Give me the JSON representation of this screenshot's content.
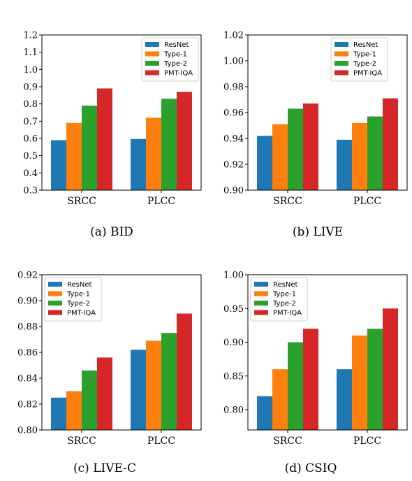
{
  "colors": {
    "ResNet": "#1f77b4",
    "Type-1": "#ff7f0e",
    "Type-2": "#2ca02c",
    "PMT-IQA": "#d62728"
  },
  "chart_data": [
    {
      "type": "bar",
      "caption": "(a) BID",
      "categories": [
        "SRCC",
        "PLCC"
      ],
      "ylim": [
        0.3,
        1.2
      ],
      "yticks": [
        "0.3",
        "0.4",
        "0.5",
        "0.6",
        "0.7",
        "0.8",
        "0.9",
        "1.0",
        "1.1",
        "1.2"
      ],
      "legend": "top-right",
      "series": [
        {
          "name": "ResNet",
          "values": [
            0.59,
            0.597
          ]
        },
        {
          "name": "Type-1",
          "values": [
            0.69,
            0.72
          ]
        },
        {
          "name": "Type-2",
          "values": [
            0.79,
            0.83
          ]
        },
        {
          "name": "PMT-IQA",
          "values": [
            0.89,
            0.87
          ]
        }
      ]
    },
    {
      "type": "bar",
      "caption": "(b) LIVE",
      "categories": [
        "SRCC",
        "PLCC"
      ],
      "ylim": [
        0.9,
        1.02
      ],
      "yticks": [
        "0.90",
        "0.92",
        "0.94",
        "0.96",
        "0.98",
        "1.00",
        "1.02"
      ],
      "legend": "top-right",
      "series": [
        {
          "name": "ResNet",
          "values": [
            0.942,
            0.939
          ]
        },
        {
          "name": "Type-1",
          "values": [
            0.951,
            0.952
          ]
        },
        {
          "name": "Type-2",
          "values": [
            0.963,
            0.957
          ]
        },
        {
          "name": "PMT-IQA",
          "values": [
            0.967,
            0.971
          ]
        }
      ]
    },
    {
      "type": "bar",
      "caption": "(c) LIVE-C",
      "categories": [
        "SRCC",
        "PLCC"
      ],
      "ylim": [
        0.8,
        0.92
      ],
      "yticks": [
        "0.80",
        "0.82",
        "0.84",
        "0.86",
        "0.88",
        "0.90",
        "0.92"
      ],
      "legend": "top-left",
      "series": [
        {
          "name": "ResNet",
          "values": [
            0.825,
            0.862
          ]
        },
        {
          "name": "Type-1",
          "values": [
            0.83,
            0.869
          ]
        },
        {
          "name": "Type-2",
          "values": [
            0.846,
            0.875
          ]
        },
        {
          "name": "PMT-IQA",
          "values": [
            0.856,
            0.89
          ]
        }
      ]
    },
    {
      "type": "bar",
      "caption": "(d) CSIQ",
      "categories": [
        "SRCC",
        "PLCC"
      ],
      "ylim": [
        0.77,
        1.0
      ],
      "yticks": [
        "0.80",
        "0.85",
        "0.90",
        "0.95",
        "1.00"
      ],
      "legend": "top-left",
      "series": [
        {
          "name": "ResNet",
          "values": [
            0.82,
            0.86
          ]
        },
        {
          "name": "Type-1",
          "values": [
            0.86,
            0.91
          ]
        },
        {
          "name": "Type-2",
          "values": [
            0.9,
            0.92
          ]
        },
        {
          "name": "PMT-IQA",
          "values": [
            0.92,
            0.95
          ]
        }
      ]
    }
  ]
}
